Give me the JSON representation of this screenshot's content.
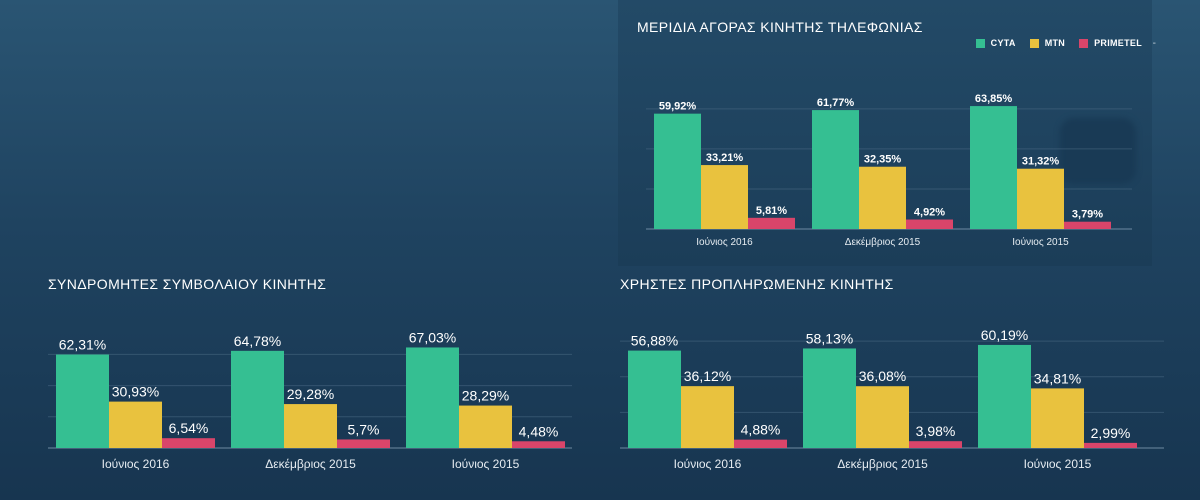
{
  "legend": {
    "items": [
      {
        "name": "CYTA",
        "color": "#35bf92"
      },
      {
        "name": "MTN",
        "color": "#e9c23e"
      },
      {
        "name": "PRIMETEL",
        "color": "#d9456a"
      }
    ],
    "trailing_mark": "-"
  },
  "chart_data": [
    {
      "type": "bar",
      "title": "ΜΕΡΙΔΙΑ ΑΓΟΡΑΣ ΚΙΝΗΤΗΣ ΤΗΛΕΦΩΝΙΑΣ",
      "categories": [
        "Ιούνιος 2016",
        "Δεκέμβριος 2015",
        "Ιούνιος 2015"
      ],
      "series": [
        {
          "name": "CYTA",
          "color": "#35bf92",
          "values": [
            59.92,
            61.77,
            63.85
          ],
          "labels": [
            "59,92%",
            "61,77%",
            "63,85%"
          ]
        },
        {
          "name": "MTN",
          "color": "#e9c23e",
          "values": [
            33.21,
            32.35,
            31.32
          ],
          "labels": [
            "33,21%",
            "32,35%",
            "31,32%"
          ]
        },
        {
          "name": "PRIMETEL",
          "color": "#d9456a",
          "values": [
            5.81,
            4.92,
            3.79
          ],
          "labels": [
            "5,81%",
            "4,92%",
            "3,79%"
          ]
        }
      ],
      "ylim": [
        0,
        80
      ],
      "grid": true,
      "legend_position": "top-right"
    },
    {
      "type": "bar",
      "title": "ΣΥΝΔΡΟΜΗΤΕΣ ΣΥΜΒΟΛΑΙΟΥ ΚΙΝΗΤΗΣ",
      "categories": [
        "Ιούνιος 2016",
        "Δεκέμβριος 2015",
        "Ιούνιος 2015"
      ],
      "series": [
        {
          "name": "CYTA",
          "color": "#35bf92",
          "values": [
            62.31,
            64.78,
            67.03
          ],
          "labels": [
            "62,31%",
            "64,78%",
            "67,03%"
          ]
        },
        {
          "name": "MTN",
          "color": "#e9c23e",
          "values": [
            30.93,
            29.28,
            28.29
          ],
          "labels": [
            "30,93%",
            "29,28%",
            "28,29%"
          ]
        },
        {
          "name": "PRIMETEL",
          "color": "#d9456a",
          "values": [
            6.54,
            5.7,
            4.48
          ],
          "labels": [
            "6,54%",
            "5,7%",
            "4,48%"
          ]
        }
      ],
      "ylim": [
        0,
        80
      ],
      "grid": true
    },
    {
      "type": "bar",
      "title": "ΧΡΗΣΤΕΣ ΠΡΟΠΛΗΡΩΜΕΝΗΣ ΚΙΝΗΤΗΣ",
      "categories": [
        "Ιούνιος 2016",
        "Δεκέμβριος 2015",
        "Ιούνιος 2015"
      ],
      "series": [
        {
          "name": "CYTA",
          "color": "#35bf92",
          "values": [
            56.88,
            58.13,
            60.19
          ],
          "labels": [
            "56,88%",
            "58,13%",
            "60,19%"
          ]
        },
        {
          "name": "MTN",
          "color": "#e9c23e",
          "values": [
            36.12,
            36.08,
            34.81
          ],
          "labels": [
            "36,12%",
            "36,08%",
            "34,81%"
          ]
        },
        {
          "name": "PRIMETEL",
          "color": "#d9456a",
          "values": [
            4.88,
            3.98,
            2.99
          ],
          "labels": [
            "4,88%",
            "3,98%",
            "2,99%"
          ]
        }
      ],
      "ylim": [
        0,
        80
      ],
      "grid": true
    }
  ]
}
